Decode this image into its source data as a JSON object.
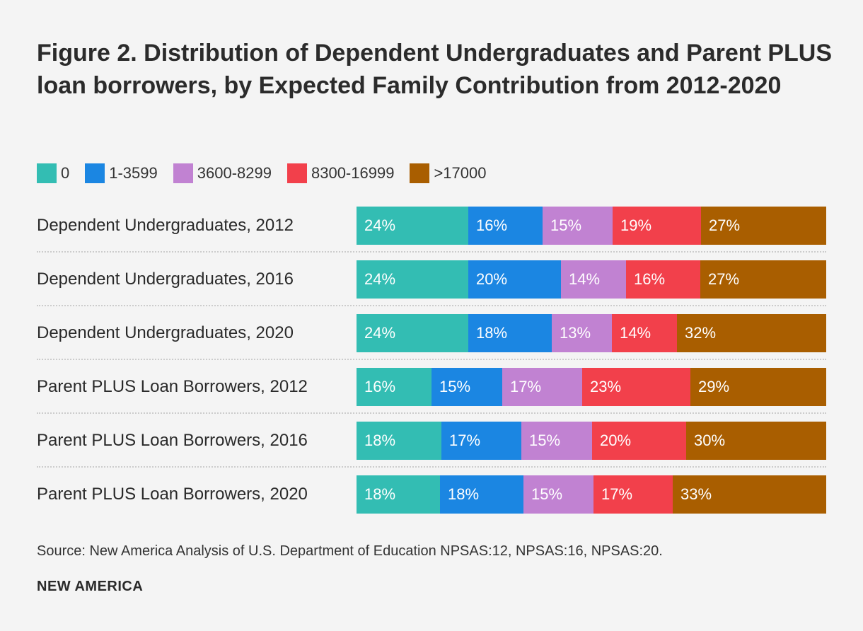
{
  "title": "Figure 2. Distribution of Dependent Undergraduates and Parent PLUS loan borrowers, by Expected Family Contribution from 2012-2020",
  "source": "Source: New America Analysis of U.S. Department of Education NPSAS:12, NPSAS:16, NPSAS:20.",
  "brand": "NEW AMERICA",
  "chart_data": {
    "type": "bar",
    "orientation": "horizontal",
    "stacked": "100%",
    "title": "Figure 2. Distribution of Dependent Undergraduates and Parent PLUS loan borrowers, by Expected Family Contribution from 2012-2020",
    "legend_position": "top-left",
    "categories": [
      "Dependent Undergraduates, 2012",
      "Dependent Undergraduates, 2016",
      "Dependent Undergraduates, 2020",
      "Parent PLUS Loan Borrowers, 2012",
      "Parent PLUS Loan Borrowers, 2016",
      "Parent PLUS Loan Borrowers, 2020"
    ],
    "series": [
      {
        "name": "0",
        "color": "#33bdb3",
        "values": [
          24,
          24,
          24,
          16,
          18,
          18
        ]
      },
      {
        "name": "1-3599",
        "color": "#1b86e2",
        "values": [
          16,
          20,
          18,
          15,
          17,
          18
        ]
      },
      {
        "name": "3600-8299",
        "color": "#c182d2",
        "values": [
          15,
          14,
          13,
          17,
          15,
          15
        ]
      },
      {
        "name": "8300-16999",
        "color": "#f2404b",
        "values": [
          19,
          16,
          14,
          23,
          20,
          17
        ]
      },
      {
        "name": ">17000",
        "color": "#a95e00",
        "values": [
          27,
          27,
          32,
          29,
          30,
          33
        ]
      }
    ],
    "value_suffix": "%"
  }
}
